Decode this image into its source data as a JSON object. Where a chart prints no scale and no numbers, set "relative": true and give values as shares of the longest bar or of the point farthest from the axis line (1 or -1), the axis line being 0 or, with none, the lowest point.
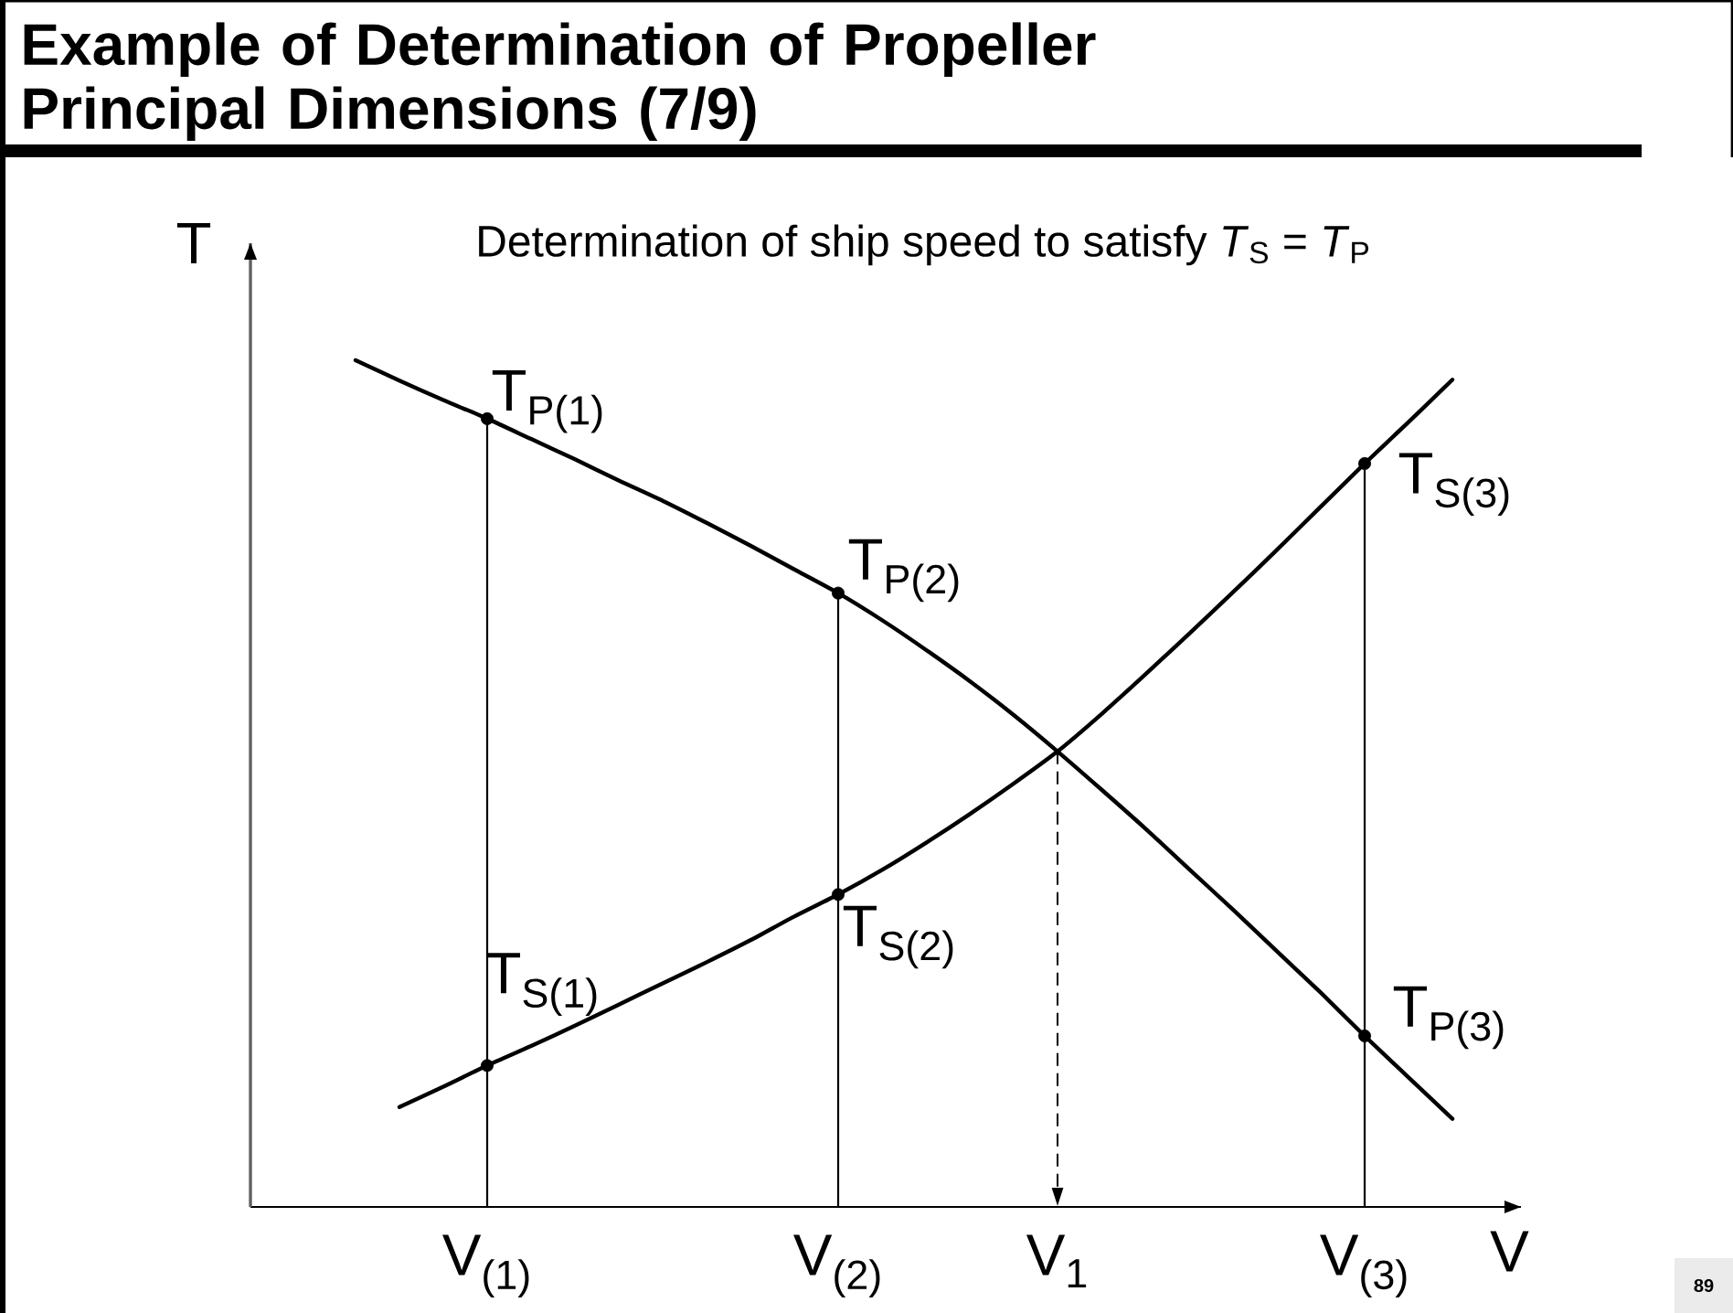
{
  "chart_data": {
    "type": "line",
    "title": "Example of Determination of Propeller Principal Dimensions (7/9)",
    "subtitle": "Determination of ship speed to satisfy *T*$_{S}$ = *T*$_{P}$",
    "xlabel": "V",
    "ylabel": "T",
    "relative": true,
    "categories": [
      null,
      null,
      null,
      null,
      null,
      "V$_{(1)}$",
      null,
      null,
      null,
      null,
      null,
      null,
      null,
      "V$_{(2)}$",
      null,
      null,
      null,
      null,
      "V$_{1}$",
      null,
      null,
      null,
      null,
      null,
      null,
      "V$_{(3)}$",
      null,
      null
    ],
    "series": [
      {
        "color": "#000000",
        "values": [
          null,
          null,
          1.0,
          0.976,
          0.953,
          0.931,
          0.907,
          0.883,
          0.858,
          0.834,
          0.808,
          0.781,
          0.753,
          0.725,
          0.693,
          0.658,
          0.621,
          0.581,
          0.538,
          0.493,
          0.447,
          0.399,
          0.351,
          0.302,
          0.253,
          0.202,
          0.153,
          0.104
        ]
      },
      {
        "color": "#000000",
        "values": [
          null,
          null,
          null,
          0.118,
          0.142,
          0.167,
          0.19,
          0.214,
          0.239,
          0.264,
          0.289,
          0.315,
          0.343,
          0.369,
          0.398,
          0.43,
          0.464,
          0.5,
          0.538,
          0.582,
          0.629,
          0.677,
          0.726,
          0.776,
          0.827,
          0.878,
          0.927,
          0.977
        ]
      },
      {
        "type": "bar",
        "color": "#000000",
        "values": [
          null,
          null,
          null,
          null,
          null,
          0.931,
          null,
          null,
          null,
          null,
          null,
          null,
          null,
          0.725,
          null,
          null,
          null,
          null,
          null,
          null,
          null,
          null,
          null,
          null,
          null,
          0.878,
          null,
          null
        ]
      },
      {
        "type": "scatter",
        "color": "#000000",
        "marker": "circle",
        "values": [
          null,
          null,
          null,
          null,
          null,
          0.931,
          null,
          null,
          null,
          null,
          null,
          null,
          null,
          0.725,
          null,
          null,
          null,
          null,
          null,
          null,
          null,
          null,
          null,
          null,
          null,
          0.878,
          null,
          null
        ]
      },
      {
        "type": "scatter",
        "color": "#000000",
        "marker": "circle",
        "values": [
          null,
          null,
          null,
          null,
          null,
          0.167,
          null,
          null,
          null,
          null,
          null,
          null,
          null,
          0.369,
          null,
          null,
          null,
          null,
          null,
          null,
          null,
          null,
          null,
          null,
          null,
          0.202,
          null,
          null
        ]
      }
    ],
    "ref_lines": [
      {
        "axis": "x",
        "value": "V$_{1}$",
        "color": "#000000",
        "line_style": "dashed"
      }
    ],
    "annotations": [
      {
        "text": "T$_{P(1)}$",
        "x": "V$_{(1)}$",
        "y": 0.931
      },
      {
        "text": "T$_{P(2)}$",
        "x": "V$_{(2)}$",
        "y": 0.725
      },
      {
        "text": "T$_{P(3)}$",
        "x": "V$_{(3)}$",
        "y": 0.202
      },
      {
        "text": "T$_{S(1)}$",
        "x": "V$_{(1)}$",
        "y": 0.167
      },
      {
        "text": "T$_{S(2)}$",
        "x": "V$_{(2)}$",
        "y": 0.369
      },
      {
        "text": "T$_{S(3)}$",
        "x": "V$_{(3)}$",
        "y": 0.878
      },
      "89"
    ]
  }
}
